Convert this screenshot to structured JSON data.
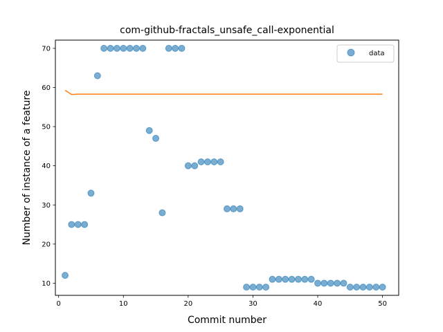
{
  "chart_data": {
    "type": "scatter",
    "title": "com-github-fractals_unsafe_call-exponential",
    "xlabel": "Commit number",
    "ylabel": "Number of instance of a feature",
    "xlim": [
      -0.5,
      52.5
    ],
    "ylim": [
      6.9,
      72.1
    ],
    "xticks": [
      0,
      10,
      20,
      30,
      40,
      50
    ],
    "yticks": [
      10,
      20,
      30,
      40,
      50,
      60,
      70
    ],
    "grid": false,
    "legend_position": "top-right",
    "series": [
      {
        "name": "data",
        "kind": "scatter",
        "color": "#1f77b4",
        "x": [
          1,
          2,
          3,
          4,
          5,
          6,
          7,
          8,
          9,
          10,
          11,
          12,
          13,
          14,
          15,
          16,
          17,
          18,
          19,
          20,
          21,
          22,
          23,
          24,
          25,
          26,
          27,
          28,
          29,
          30,
          31,
          32,
          33,
          34,
          35,
          36,
          37,
          38,
          39,
          40,
          41,
          42,
          43,
          44,
          45,
          46,
          47,
          48,
          49,
          50
        ],
        "y": [
          12,
          25,
          25,
          25,
          33,
          63,
          70,
          70,
          70,
          70,
          70,
          70,
          70,
          49,
          47,
          28,
          70,
          70,
          70,
          40,
          40,
          41,
          41,
          41,
          41,
          29,
          29,
          29,
          9,
          9,
          9,
          9,
          11,
          11,
          11,
          11,
          11,
          11,
          11,
          10,
          10,
          10,
          10,
          10,
          9,
          9,
          9,
          9,
          9,
          9
        ]
      },
      {
        "kind": "line",
        "color": "#ff7f0e",
        "x": [
          1,
          2,
          3,
          4,
          5,
          6,
          7,
          8,
          9,
          10,
          11,
          12,
          13,
          14,
          15,
          16,
          17,
          18,
          19,
          20,
          21,
          22,
          23,
          24,
          25,
          26,
          27,
          28,
          29,
          30,
          31,
          32,
          33,
          34,
          35,
          36,
          37,
          38,
          39,
          40,
          41,
          42,
          43,
          44,
          45,
          46,
          47,
          48,
          49,
          50
        ],
        "y": [
          59.3,
          58.2,
          58.3,
          58.3,
          58.3,
          58.3,
          58.3,
          58.3,
          58.3,
          58.3,
          58.3,
          58.3,
          58.3,
          58.3,
          58.3,
          58.3,
          58.3,
          58.3,
          58.3,
          58.3,
          58.3,
          58.3,
          58.3,
          58.3,
          58.3,
          58.3,
          58.3,
          58.3,
          58.3,
          58.3,
          58.3,
          58.3,
          58.3,
          58.3,
          58.3,
          58.3,
          58.3,
          58.3,
          58.3,
          58.3,
          58.3,
          58.3,
          58.3,
          58.3,
          58.3,
          58.3,
          58.3,
          58.3,
          58.3,
          58.3
        ]
      }
    ]
  }
}
